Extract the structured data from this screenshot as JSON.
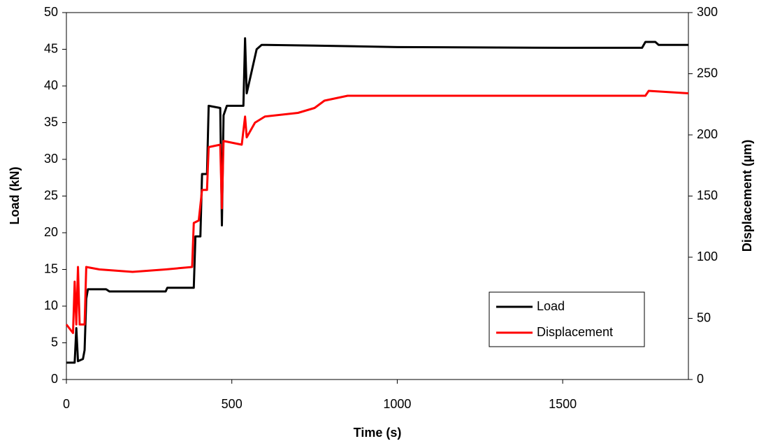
{
  "chart_data": {
    "type": "line",
    "xlabel": "Time (s)",
    "ylabel": "Load (kN)",
    "y2label": "Displacement (µm)",
    "xlim": [
      0,
      1880
    ],
    "xticks": [
      0,
      500,
      1000,
      1500
    ],
    "ylim": [
      0,
      50
    ],
    "yticks": [
      0,
      5,
      10,
      15,
      20,
      25,
      30,
      35,
      40,
      45,
      50
    ],
    "y2lim": [
      0,
      300
    ],
    "y2ticks": [
      0,
      50,
      100,
      150,
      200,
      250,
      300
    ],
    "grid": false,
    "legend": "lower right",
    "series": [
      {
        "name": "Load",
        "color": "#000000",
        "axis": "y",
        "x": [
          0,
          25,
          30,
          35,
          50,
          55,
          60,
          65,
          120,
          130,
          300,
          305,
          385,
          390,
          405,
          410,
          425,
          430,
          465,
          470,
          475,
          485,
          535,
          540,
          545,
          555,
          565,
          575,
          590,
          750,
          1000,
          1500,
          1740,
          1750,
          1780,
          1790,
          1880
        ],
        "values": [
          2.3,
          2.3,
          7,
          2.5,
          2.8,
          4,
          11,
          12.3,
          12.3,
          12,
          12,
          12.5,
          12.5,
          19.5,
          19.5,
          28,
          28,
          37.3,
          37,
          21,
          36,
          37.3,
          37.3,
          46.5,
          39,
          41,
          43,
          45,
          45.6,
          45.5,
          45.3,
          45.2,
          45.2,
          46,
          46,
          45.6,
          45.6
        ]
      },
      {
        "name": "Displacement",
        "color": "#ff0000",
        "axis": "y2",
        "x": [
          0,
          20,
          25,
          30,
          35,
          40,
          55,
          60,
          100,
          200,
          300,
          380,
          385,
          400,
          410,
          425,
          430,
          465,
          470,
          475,
          530,
          540,
          545,
          570,
          600,
          700,
          750,
          780,
          850,
          1000,
          1500,
          1750,
          1760,
          1880
        ],
        "values": [
          45,
          38,
          80,
          45,
          92,
          45,
          45,
          92,
          90,
          88,
          90,
          92,
          128,
          130,
          155,
          155,
          190,
          192,
          140,
          195,
          192,
          215,
          198,
          210,
          215,
          218,
          222,
          228,
          232,
          232,
          232,
          232,
          236,
          234
        ]
      }
    ]
  }
}
